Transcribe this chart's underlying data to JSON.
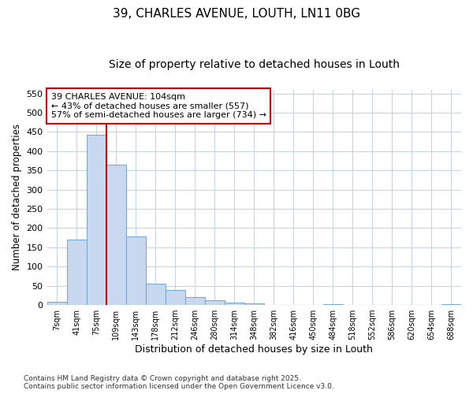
{
  "title1": "39, CHARLES AVENUE, LOUTH, LN11 0BG",
  "title2": "Size of property relative to detached houses in Louth",
  "xlabel": "Distribution of detached houses by size in Louth",
  "ylabel": "Number of detached properties",
  "bin_labels": [
    "7sqm",
    "41sqm",
    "75sqm",
    "109sqm",
    "143sqm",
    "178sqm",
    "212sqm",
    "246sqm",
    "280sqm",
    "314sqm",
    "348sqm",
    "382sqm",
    "416sqm",
    "450sqm",
    "484sqm",
    "518sqm",
    "552sqm",
    "586sqm",
    "620sqm",
    "654sqm",
    "688sqm"
  ],
  "bar_heights": [
    8,
    170,
    443,
    365,
    178,
    55,
    40,
    20,
    12,
    7,
    4,
    0,
    0,
    0,
    2,
    0,
    0,
    0,
    0,
    1,
    3
  ],
  "bar_color": "#c8d8ee",
  "bar_edge_color": "#7aaad0",
  "grid_color": "#c8d4e0",
  "vline_x": 2.5,
  "annotation_text": "39 CHARLES AVENUE: 104sqm\n← 43% of detached houses are smaller (557)\n57% of semi-detached houses are larger (734) →",
  "annotation_box_color": "#ffffff",
  "annotation_box_edge": "#cc0000",
  "vline_color": "#cc0000",
  "footer_text": "Contains HM Land Registry data © Crown copyright and database right 2025.\nContains public sector information licensed under the Open Government Licence v3.0.",
  "ylim": [
    0,
    560
  ],
  "yticks": [
    0,
    50,
    100,
    150,
    200,
    250,
    300,
    350,
    400,
    450,
    500,
    550
  ],
  "background_color": "#ffffff",
  "title_fontsize": 11,
  "subtitle_fontsize": 10
}
